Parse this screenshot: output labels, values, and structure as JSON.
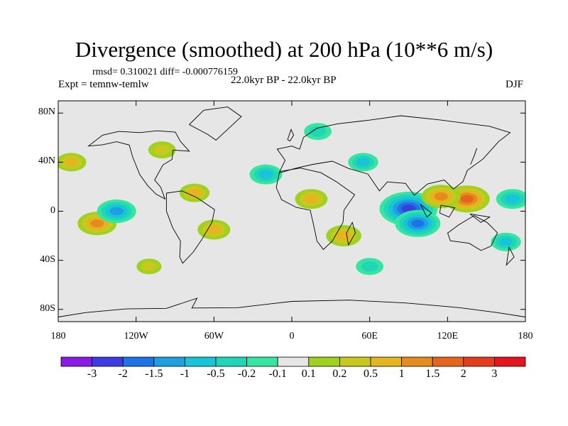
{
  "chart_data": {
    "type": "heatmap",
    "title": "Divergence (smoothed) at 200 hPa (10**6 m/s)",
    "stats_text": "rmsd= 0.310021 diff= -0.000776159",
    "left_label": "Expt = temnw-temlw",
    "center_label": "22.0kyr BP - 22.0kyr BP",
    "right_label": "DJF",
    "x_axis": {
      "range": [
        -180,
        180
      ],
      "ticks": [
        -180,
        -120,
        -60,
        0,
        60,
        120,
        180
      ],
      "tick_labels": [
        "180",
        "120W",
        "60W",
        "0",
        "60E",
        "120E",
        "180"
      ]
    },
    "y_axis": {
      "range": [
        -90,
        90
      ],
      "ticks": [
        80,
        40,
        0,
        -40,
        -80
      ],
      "tick_labels": [
        "80N",
        "40N",
        "0",
        "40S",
        "80S"
      ]
    },
    "colorbar": {
      "levels": [
        "-3",
        "-2",
        "-1.5",
        "-1",
        "-0.5",
        "-0.2",
        "-0.1",
        "0.1",
        "0.2",
        "0.5",
        "1",
        "1.5",
        "2",
        "3"
      ],
      "colors": [
        "#8b1ae6",
        "#3c3ce0",
        "#1e73e6",
        "#1e9fe0",
        "#18c4d8",
        "#21d6b8",
        "#36e6a0",
        "#e6e6e6",
        "#9ed21e",
        "#c8c81e",
        "#e6b41e",
        "#e68c1e",
        "#e6641e",
        "#e63c1e",
        "#e6141e"
      ]
    },
    "anomalies": [
      {
        "lon": 90,
        "lat": 2,
        "value": -3.0
      },
      {
        "lon": 97,
        "lat": -10,
        "value": -2.0
      },
      {
        "lon": 135,
        "lat": 10,
        "value": 2.0
      },
      {
        "lon": 115,
        "lat": 12,
        "value": 1.5
      },
      {
        "lon": -150,
        "lat": -10,
        "value": 1.5
      },
      {
        "lon": 15,
        "lat": 10,
        "value": 1.0
      },
      {
        "lon": 40,
        "lat": -20,
        "value": 1.2
      },
      {
        "lon": -60,
        "lat": -15,
        "value": 1.0
      },
      {
        "lon": -135,
        "lat": 0,
        "value": -1.5
      },
      {
        "lon": -20,
        "lat": 30,
        "value": -1.0
      },
      {
        "lon": -75,
        "lat": 15,
        "value": 0.8
      },
      {
        "lon": 55,
        "lat": 40,
        "value": -0.8
      },
      {
        "lon": -170,
        "lat": 40,
        "value": 0.8
      },
      {
        "lon": 170,
        "lat": 10,
        "value": -1.0
      },
      {
        "lon": 20,
        "lat": 65,
        "value": -0.6
      },
      {
        "lon": -100,
        "lat": 50,
        "value": 0.6
      },
      {
        "lon": 165,
        "lat": -25,
        "value": -0.8
      },
      {
        "lon": 60,
        "lat": -45,
        "value": -0.6
      },
      {
        "lon": -110,
        "lat": -45,
        "value": 0.4
      }
    ]
  }
}
